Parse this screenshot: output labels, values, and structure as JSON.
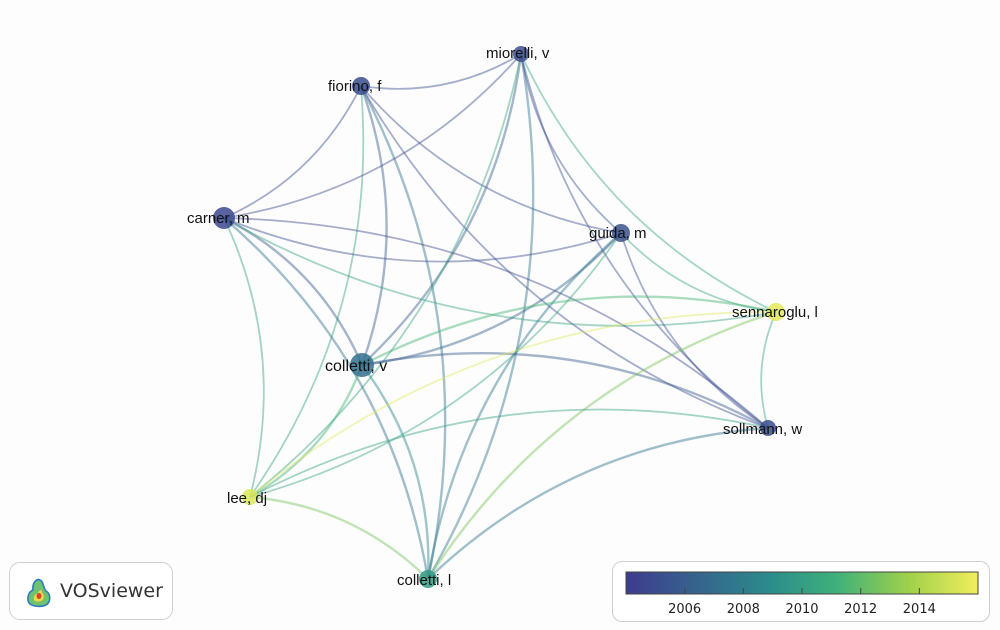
{
  "software": "VOSviewer",
  "nodes": [
    {
      "id": "miorelli",
      "label": "miorelli, v",
      "year": 2005.2
    },
    {
      "id": "fiorino",
      "label": "fiorino, f",
      "year": 2005.0
    },
    {
      "id": "carner",
      "label": "carner, m",
      "year": 2004.8
    },
    {
      "id": "guida",
      "label": "guida, m",
      "year": 2005.5
    },
    {
      "id": "sennaroglu",
      "label": "sennaroglu, l",
      "year": 2015.6
    },
    {
      "id": "colletti_v",
      "label": "colletti, v",
      "year": 2007.2
    },
    {
      "id": "sollmann",
      "label": "sollmann, w",
      "year": 2005.0
    },
    {
      "id": "lee",
      "label": "lee, dj",
      "year": 2015.4
    },
    {
      "id": "colletti_l",
      "label": "colletti, l",
      "year": 2009.8
    }
  ],
  "links": [
    [
      "fiorino",
      "miorelli"
    ],
    [
      "fiorino",
      "carner"
    ],
    [
      "fiorino",
      "guida"
    ],
    [
      "fiorino",
      "colletti_v"
    ],
    [
      "fiorino",
      "colletti_l"
    ],
    [
      "fiorino",
      "sollmann"
    ],
    [
      "fiorino",
      "lee"
    ],
    [
      "miorelli",
      "carner"
    ],
    [
      "miorelli",
      "guida"
    ],
    [
      "miorelli",
      "colletti_v"
    ],
    [
      "miorelli",
      "colletti_l"
    ],
    [
      "miorelli",
      "sollmann"
    ],
    [
      "miorelli",
      "sennaroglu"
    ],
    [
      "miorelli",
      "lee"
    ],
    [
      "carner",
      "guida"
    ],
    [
      "carner",
      "colletti_v"
    ],
    [
      "carner",
      "colletti_l"
    ],
    [
      "carner",
      "sennaroglu"
    ],
    [
      "carner",
      "sollmann"
    ],
    [
      "carner",
      "lee"
    ],
    [
      "guida",
      "colletti_v"
    ],
    [
      "guida",
      "colletti_l"
    ],
    [
      "guida",
      "sollmann"
    ],
    [
      "guida",
      "lee"
    ],
    [
      "guida",
      "sennaroglu"
    ],
    [
      "colletti_v",
      "colletti_l"
    ],
    [
      "colletti_v",
      "sollmann"
    ],
    [
      "colletti_v",
      "sennaroglu"
    ],
    [
      "colletti_v",
      "lee"
    ],
    [
      "sennaroglu",
      "lee"
    ],
    [
      "sennaroglu",
      "sollmann"
    ],
    [
      "sennaroglu",
      "colletti_l"
    ],
    [
      "sollmann",
      "lee"
    ],
    [
      "sollmann",
      "colletti_l"
    ],
    [
      "lee",
      "colletti_l"
    ]
  ],
  "legend": {
    "min_year": 2004,
    "max_year": 2016,
    "ticks": [
      "2006",
      "2008",
      "2010",
      "2012",
      "2014"
    ],
    "colors": [
      "#3d3b8e",
      "#36638d",
      "#2a8a8c",
      "#3fb17a",
      "#9fd04a",
      "#f1ee5c"
    ]
  }
}
